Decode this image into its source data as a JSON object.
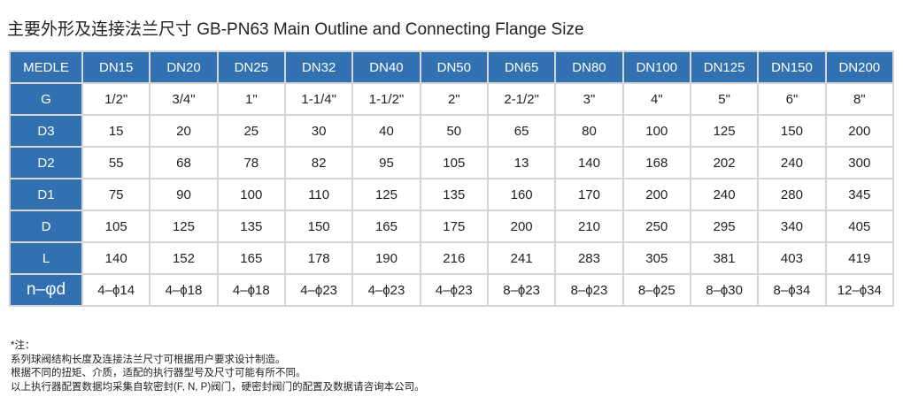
{
  "title": "主要外形及连接法兰尺寸 GB-PN63  Main Outline and Connecting Flange Size",
  "table": {
    "header": [
      "MEDLE",
      "DN15",
      "DN20",
      "DN25",
      "DN32",
      "DN40",
      "DN50",
      "DN65",
      "DN80",
      "DN100",
      "DN125",
      "DN150",
      "DN200"
    ],
    "rows": [
      [
        "G",
        "1/2\"",
        "3/4\"",
        "1\"",
        "1-1/4\"",
        "1-1/2\"",
        "2\"",
        "2-1/2\"",
        "3\"",
        "4\"",
        "5\"",
        "6\"",
        "8\""
      ],
      [
        "D3",
        "15",
        "20",
        "25",
        "30",
        "40",
        "50",
        "65",
        "80",
        "100",
        "125",
        "150",
        "200"
      ],
      [
        "D2",
        "55",
        "68",
        "78",
        "82",
        "95",
        "105",
        "13",
        "140",
        "168",
        "202",
        "240",
        "300"
      ],
      [
        "D1",
        "75",
        "90",
        "100",
        "110",
        "125",
        "135",
        "160",
        "170",
        "200",
        "240",
        "280",
        "345"
      ],
      [
        "D",
        "105",
        "125",
        "135",
        "150",
        "165",
        "175",
        "200",
        "210",
        "250",
        "295",
        "340",
        "405"
      ],
      [
        "L",
        "140",
        "152",
        "165",
        "178",
        "190",
        "216",
        "241",
        "283",
        "305",
        "381",
        "403",
        "419"
      ],
      [
        "n–φd",
        "4–ϕ14",
        "4–ϕ18",
        "4–ϕ18",
        "4–ϕ23",
        "4–ϕ23",
        "4–ϕ23",
        "8–ϕ23",
        "8–ϕ23",
        "8–ϕ25",
        "8–ϕ30",
        "8–ϕ34",
        "12–ϕ34"
      ]
    ]
  },
  "notes": [
    "*注：",
    "系列球阀结构长度及连接法兰尺寸可根据用户要求设计制造。",
    "根据不同的扭矩、介质，适配的执行器型号及尺寸可能有所不同。",
    "以上执行器配置数据均采集自软密封(F, N, P)阀门，硬密封阀门的配置及数据请咨询本公司。"
  ],
  "colors": {
    "header_bg": "#3170b1",
    "border": "#d6d6d6"
  }
}
